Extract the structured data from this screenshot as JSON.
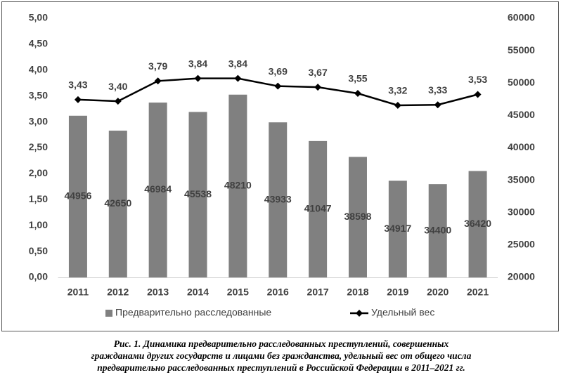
{
  "chart_data": {
    "type": "bar-line",
    "categories": [
      "2011",
      "2012",
      "2013",
      "2014",
      "2015",
      "2016",
      "2017",
      "2018",
      "2019",
      "2020",
      "2021"
    ],
    "series": [
      {
        "name": "Предварительно расследованные",
        "type": "bar",
        "axis": "y2",
        "color": "#808080",
        "values": [
          44956,
          42650,
          46984,
          45538,
          48210,
          43933,
          41047,
          38598,
          34917,
          34400,
          36420
        ]
      },
      {
        "name": "Удельный вес",
        "type": "line",
        "axis": "y",
        "color": "#000000",
        "values": [
          3.43,
          3.4,
          3.79,
          3.84,
          3.84,
          3.69,
          3.67,
          3.55,
          3.32,
          3.33,
          3.53
        ],
        "value_labels": [
          "3,43",
          "3,40",
          "3,79",
          "3,84",
          "3,84",
          "3,69",
          "3,67",
          "3,55",
          "3,32",
          "3,33",
          "3,53"
        ]
      }
    ],
    "ylim": [
      0,
      5
    ],
    "yticks": [
      {
        "value": 0,
        "label": "0,00"
      },
      {
        "value": 0.5,
        "label": "0,50"
      },
      {
        "value": 1,
        "label": "1,00"
      },
      {
        "value": 1.5,
        "label": "1,50"
      },
      {
        "value": 2,
        "label": "2,00"
      },
      {
        "value": 2.5,
        "label": "2,50"
      },
      {
        "value": 3,
        "label": "3,00"
      },
      {
        "value": 3.5,
        "label": "3,50"
      },
      {
        "value": 4,
        "label": "4,00"
      },
      {
        "value": 4.5,
        "label": "4,50"
      },
      {
        "value": 5,
        "label": "5,00"
      }
    ],
    "y2lim": [
      20000,
      60000
    ],
    "y2ticks": [
      20000,
      25000,
      30000,
      35000,
      40000,
      45000,
      50000,
      55000,
      60000
    ],
    "grid": false,
    "legend": "bottom",
    "caption": [
      "Рис. 1. Динамика предварительно расследованных преступлений, совершенных",
      "гражданами других государств и лицами без гражданства, удельный вес от общего числа",
      "предварительно расследованных преступлений в Российской Федерации в 2011–2021 гг."
    ]
  }
}
